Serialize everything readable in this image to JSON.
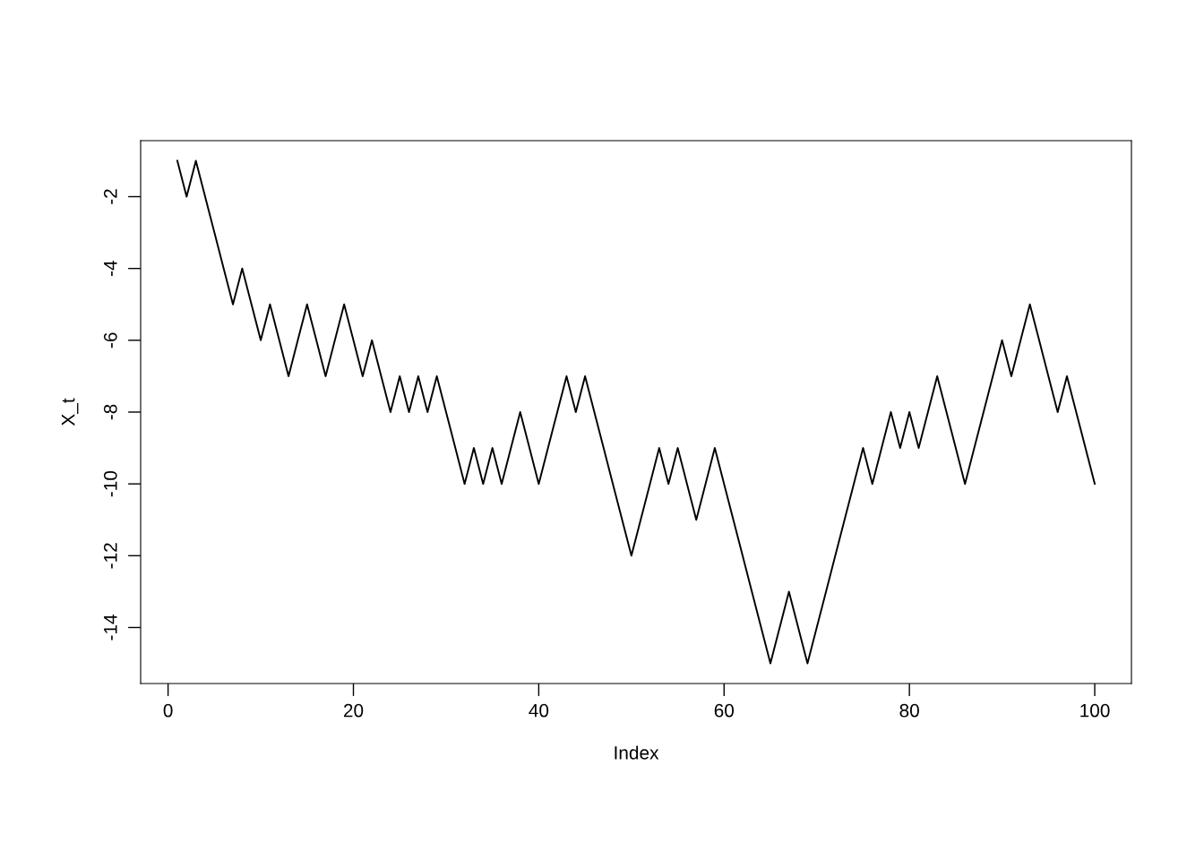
{
  "chart_data": {
    "type": "line",
    "xlabel": "Index",
    "ylabel": "X_t",
    "x": [
      1,
      2,
      3,
      4,
      5,
      6,
      7,
      8,
      9,
      10,
      11,
      12,
      13,
      14,
      15,
      16,
      17,
      18,
      19,
      20,
      21,
      22,
      23,
      24,
      25,
      26,
      27,
      28,
      29,
      30,
      31,
      32,
      33,
      34,
      35,
      36,
      37,
      38,
      39,
      40,
      41,
      42,
      43,
      44,
      45,
      46,
      47,
      48,
      49,
      50,
      51,
      52,
      53,
      54,
      55,
      56,
      57,
      58,
      59,
      60,
      61,
      62,
      63,
      64,
      65,
      66,
      67,
      68,
      69,
      70,
      71,
      72,
      73,
      74,
      75,
      76,
      77,
      78,
      79,
      80,
      81,
      82,
      83,
      84,
      85,
      86,
      87,
      88,
      89,
      90,
      91,
      92,
      93,
      94,
      95,
      96,
      97,
      98,
      99,
      100
    ],
    "series": [
      {
        "color": "#000000",
        "values": [
          -1,
          -2,
          -1,
          -2,
          -3,
          -4,
          -5,
          -4,
          -5,
          -6,
          -5,
          -6,
          -7,
          -6,
          -5,
          -6,
          -7,
          -6,
          -5,
          -6,
          -7,
          -6,
          -7,
          -8,
          -7,
          -8,
          -7,
          -8,
          -7,
          -8,
          -9,
          -10,
          -9,
          -10,
          -9,
          -10,
          -9,
          -8,
          -9,
          -10,
          -9,
          -8,
          -7,
          -8,
          -7,
          -8,
          -9,
          -10,
          -11,
          -12,
          -11,
          -10,
          -9,
          -10,
          -9,
          -10,
          -11,
          -10,
          -9,
          -10,
          -11,
          -12,
          -13,
          -14,
          -15,
          -14,
          -13,
          -14,
          -15,
          -14,
          -13,
          -12,
          -11,
          -10,
          -9,
          -10,
          -9,
          -8,
          -9,
          -8,
          -9,
          -8,
          -7,
          -8,
          -9,
          -10,
          -9,
          -8,
          -7,
          -6,
          -7,
          -6,
          -5,
          -6,
          -7,
          -8,
          -7,
          -8,
          -9,
          -10
        ]
      }
    ],
    "xlim": [
      -2.96,
      103.96
    ],
    "ylim": [
      -15.56,
      -0.44
    ],
    "xticks": [
      0,
      20,
      40,
      60,
      80,
      100
    ],
    "yticks": [
      -2,
      -4,
      -6,
      -8,
      -10,
      -12,
      -14
    ],
    "grid": false,
    "legend": false,
    "marker": "none",
    "line_style": "solid"
  }
}
